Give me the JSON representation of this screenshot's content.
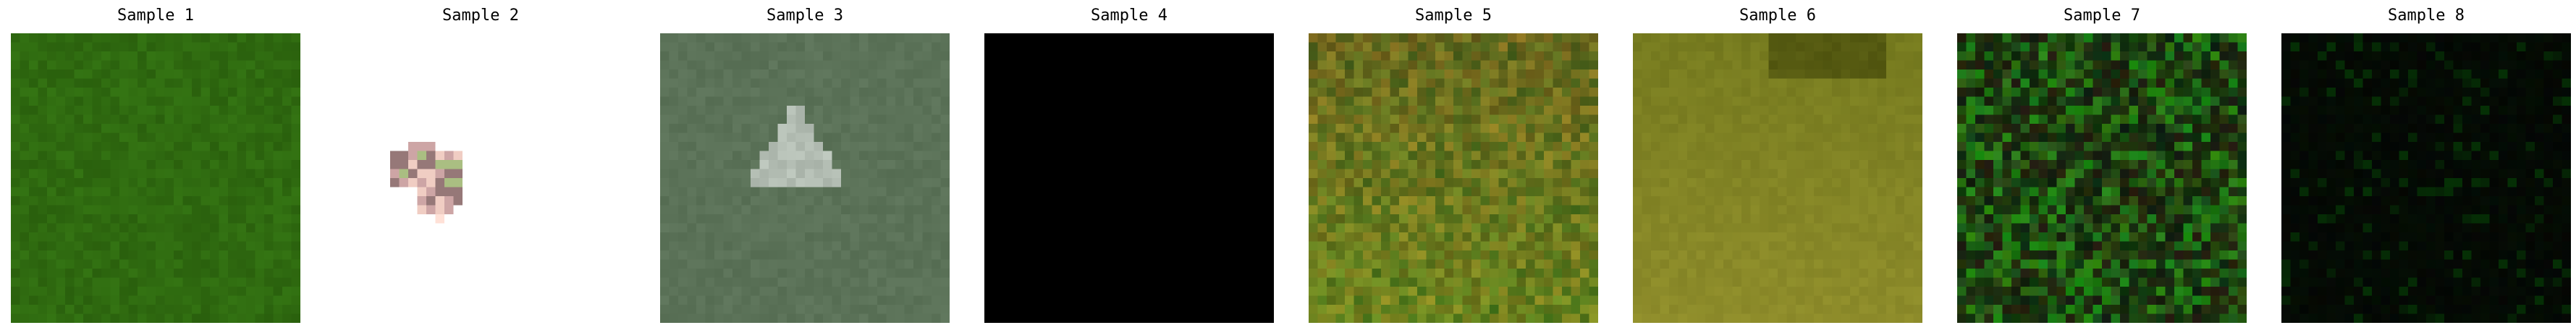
{
  "figure": {
    "panels": [
      {
        "title": "Sample 1",
        "image": "green-vegetation-texture",
        "base_color": "#2f6a10",
        "noise": 10,
        "variant": "flat"
      },
      {
        "title": "Sample 2",
        "image": "small-pink-green-blob-on-white",
        "base_color": "#ffffff",
        "noise": 0,
        "variant": "blob"
      },
      {
        "title": "Sample 3",
        "image": "gray-green-with-pale-triangle",
        "base_color": "#5b7258",
        "noise": 6,
        "variant": "triangle"
      },
      {
        "title": "Sample 4",
        "image": "solid-black",
        "base_color": "#000000",
        "noise": 0,
        "variant": "flat"
      },
      {
        "title": "Sample 5",
        "image": "brown-olive-noise",
        "base_color": "#6b6a1e",
        "noise": 28,
        "variant": "mottled"
      },
      {
        "title": "Sample 6",
        "image": "olive-yellow-gradient",
        "base_color": "#8f8d2b",
        "noise": 6,
        "variant": "gradient"
      },
      {
        "title": "Sample 7",
        "image": "dark-green-speckle",
        "base_color": "#1d3d14",
        "noise": 35,
        "variant": "speckle"
      },
      {
        "title": "Sample 8",
        "image": "very-dark-green-speckle",
        "base_color": "#040b04",
        "noise": 6,
        "variant": "sparse"
      }
    ]
  }
}
